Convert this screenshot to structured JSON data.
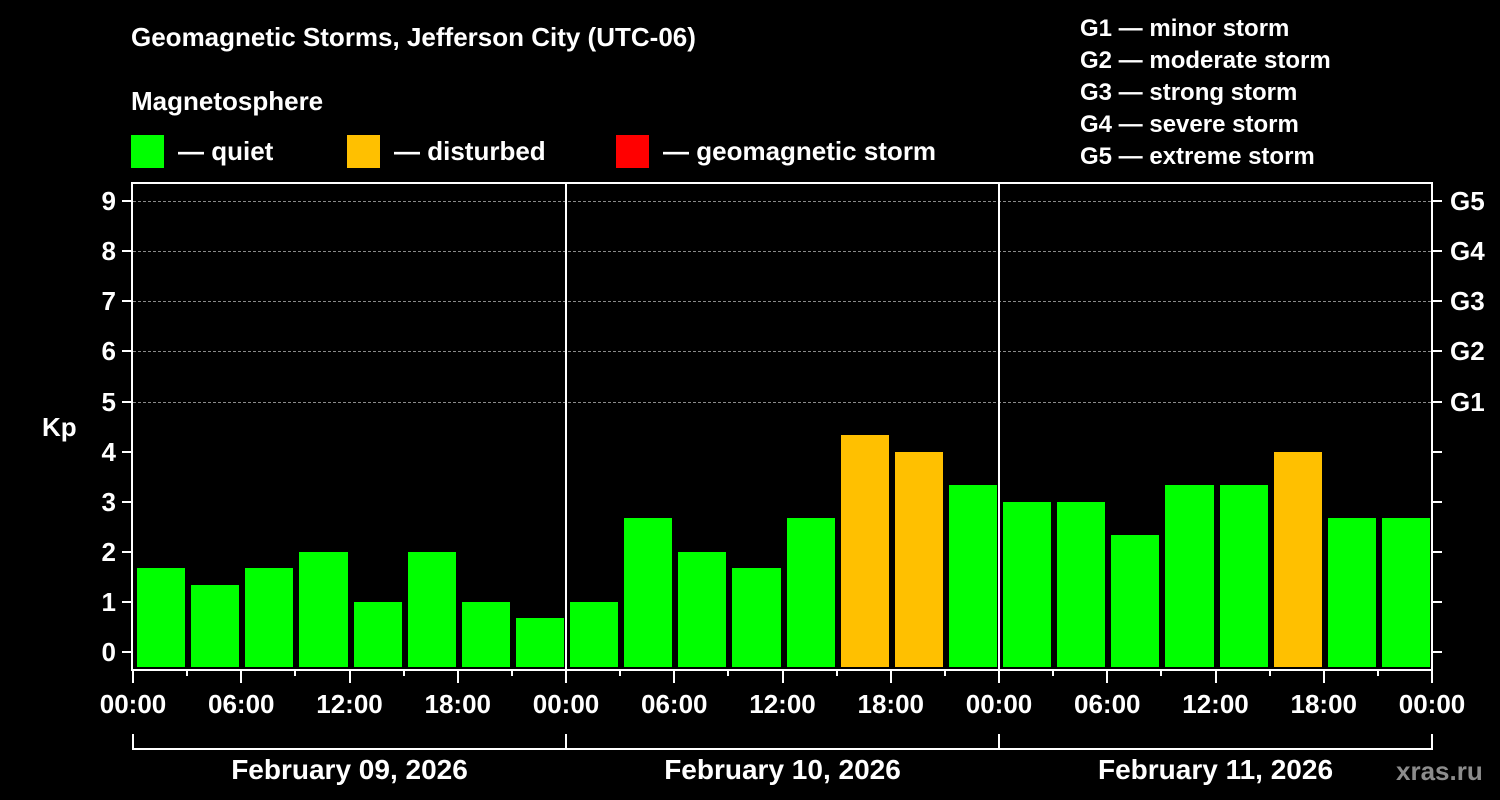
{
  "chart_data": {
    "type": "bar",
    "title": "Geomagnetic Storms, Jefferson City (UTC-06)",
    "subtitle": "Magnetosphere",
    "ylabel": "Kp",
    "xlabel": "",
    "ylim": [
      0,
      9
    ],
    "yticks": [
      0,
      1,
      2,
      3,
      4,
      5,
      6,
      7,
      8,
      9
    ],
    "grid": "dashed horizontal at Kp 5-9",
    "right_axis_labels": [
      {
        "kp": 5,
        "label": "G1"
      },
      {
        "kp": 6,
        "label": "G2"
      },
      {
        "kp": 7,
        "label": "G3"
      },
      {
        "kp": 8,
        "label": "G4"
      },
      {
        "kp": 9,
        "label": "G5"
      }
    ],
    "legend": [
      {
        "label": "— quiet",
        "color": "#00ff00"
      },
      {
        "label": "— disturbed",
        "color": "#ffc000"
      },
      {
        "label": "— geomagnetic storm",
        "color": "#ff0000"
      }
    ],
    "storm_scale": [
      "G1 — minor storm",
      "G2 — moderate storm",
      "G3 — strong storm",
      "G4 — severe storm",
      "G5 — extreme storm"
    ],
    "x_tick_labels": [
      "00:00",
      "06:00",
      "12:00",
      "18:00",
      "00:00",
      "06:00",
      "12:00",
      "18:00",
      "00:00",
      "06:00",
      "12:00",
      "18:00",
      "00:00"
    ],
    "days": [
      "February 09, 2026",
      "February 10, 2026",
      "February 11, 2026"
    ],
    "interval_hours": 3,
    "series": [
      {
        "name": "Kp",
        "values": [
          1.67,
          1.33,
          1.67,
          2.0,
          1.0,
          2.0,
          1.0,
          0.67,
          1.0,
          2.67,
          2.0,
          1.67,
          2.67,
          4.33,
          4.0,
          3.33,
          3.0,
          3.0,
          2.33,
          3.33,
          3.33,
          4.0,
          2.67,
          2.67
        ],
        "status": [
          "quiet",
          "quiet",
          "quiet",
          "quiet",
          "quiet",
          "quiet",
          "quiet",
          "quiet",
          "quiet",
          "quiet",
          "quiet",
          "quiet",
          "quiet",
          "disturbed",
          "disturbed",
          "quiet",
          "quiet",
          "quiet",
          "quiet",
          "quiet",
          "quiet",
          "disturbed",
          "quiet",
          "quiet"
        ]
      }
    ],
    "watermark": "xras.ru"
  },
  "colors": {
    "quiet": "#00ff00",
    "disturbed": "#ffc000",
    "storm": "#ff0000"
  }
}
